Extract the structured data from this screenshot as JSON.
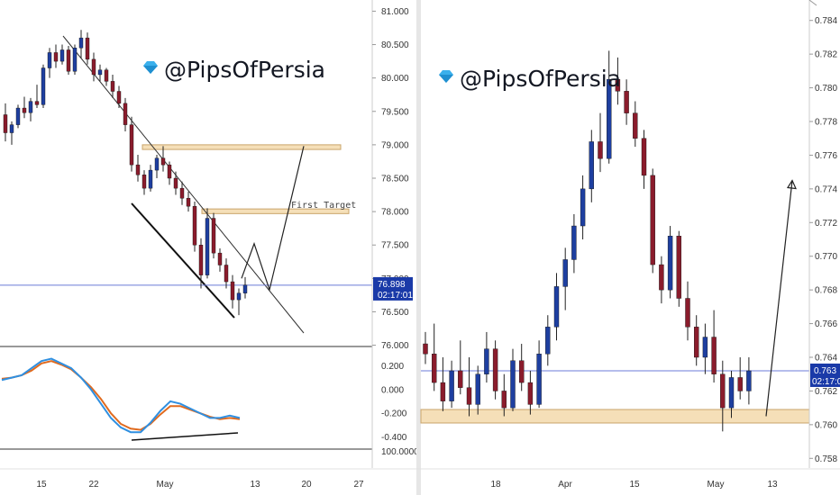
{
  "watermark": "@PipsOfPersia",
  "colors": {
    "up_candle": "#1e3fa0",
    "down_candle": "#8a1c2c",
    "zone_fill": "#f5dfb8",
    "zone_stroke": "#c9a46a",
    "current_line": "#6b7bd8",
    "badge": "#1a3aa8",
    "osc_fast": "#2f8fe0",
    "osc_slow": "#e06a1e"
  },
  "chart_data": [
    {
      "type": "candlestick",
      "title": "",
      "annotation": "First Target",
      "y_axis": {
        "ylim": [
          75.9,
          81.1
        ],
        "ticks": [
          "81.000",
          "80.500",
          "80.000",
          "79.500",
          "79.000",
          "78.500",
          "78.000",
          "77.500",
          "77.000",
          "76.500",
          "76.000"
        ]
      },
      "x_axis": {
        "ticks": [
          "15",
          "22",
          "May",
          "13",
          "20",
          "27"
        ]
      },
      "current_price": {
        "value": 76.898,
        "label": "76.898",
        "countdown": "02:17:01"
      },
      "zones": [
        {
          "low": 78.93,
          "high": 79.0,
          "label": ""
        },
        {
          "low": 77.97,
          "high": 78.04,
          "label": "First Target"
        }
      ],
      "path_points": [
        {
          "x": "May 13",
          "y": 77.0
        },
        {
          "x": "May 14",
          "y": 77.52
        },
        {
          "x": "May 15",
          "y": 76.83
        },
        {
          "x": "May 20",
          "y": 78.98
        }
      ],
      "oscillator": {
        "ylim": [
          -0.48,
          0.34
        ],
        "ticks": [
          "0.200",
          "0.000",
          "-0.200",
          "-0.400"
        ],
        "extra_tick": "100.0000",
        "series": [
          {
            "name": "",
            "values": [
              0.08,
              0.1,
              0.12,
              0.18,
              0.24,
              0.26,
              0.22,
              0.18,
              0.1,
              0.0,
              -0.12,
              -0.24,
              -0.32,
              -0.36,
              -0.36,
              -0.28,
              -0.18,
              -0.1,
              -0.12,
              -0.16,
              -0.2,
              -0.24,
              -0.24,
              -0.22,
              -0.24
            ]
          },
          {
            "name": "",
            "values": [
              0.09,
              0.1,
              0.12,
              0.16,
              0.22,
              0.24,
              0.21,
              0.17,
              0.1,
              0.02,
              -0.08,
              -0.2,
              -0.29,
              -0.33,
              -0.34,
              -0.29,
              -0.21,
              -0.14,
              -0.14,
              -0.17,
              -0.2,
              -0.23,
              -0.25,
              -0.24,
              -0.25
            ]
          }
        ]
      },
      "candles": [
        {
          "o": 79.45,
          "h": 79.62,
          "l": 79.05,
          "c": 79.18
        },
        {
          "o": 79.18,
          "h": 79.35,
          "l": 79.0,
          "c": 79.3
        },
        {
          "o": 79.3,
          "h": 79.6,
          "l": 79.25,
          "c": 79.55
        },
        {
          "o": 79.55,
          "h": 79.72,
          "l": 79.4,
          "c": 79.48
        },
        {
          "o": 79.48,
          "h": 79.7,
          "l": 79.35,
          "c": 79.65
        },
        {
          "o": 79.65,
          "h": 79.9,
          "l": 79.55,
          "c": 79.6
        },
        {
          "o": 79.6,
          "h": 80.2,
          "l": 79.55,
          "c": 80.15
        },
        {
          "o": 80.15,
          "h": 80.45,
          "l": 80.0,
          "c": 80.38
        },
        {
          "o": 80.38,
          "h": 80.5,
          "l": 80.15,
          "c": 80.25
        },
        {
          "o": 80.25,
          "h": 80.5,
          "l": 80.2,
          "c": 80.42
        },
        {
          "o": 80.42,
          "h": 80.48,
          "l": 80.05,
          "c": 80.1
        },
        {
          "o": 80.1,
          "h": 80.5,
          "l": 80.05,
          "c": 80.45
        },
        {
          "o": 80.45,
          "h": 80.72,
          "l": 80.3,
          "c": 80.6
        },
        {
          "o": 80.6,
          "h": 80.68,
          "l": 80.2,
          "c": 80.28
        },
        {
          "o": 80.28,
          "h": 80.38,
          "l": 79.95,
          "c": 80.05
        },
        {
          "o": 80.05,
          "h": 80.2,
          "l": 79.95,
          "c": 80.12
        },
        {
          "o": 80.12,
          "h": 80.15,
          "l": 79.88,
          "c": 79.95
        },
        {
          "o": 79.95,
          "h": 80.05,
          "l": 79.7,
          "c": 79.8
        },
        {
          "o": 79.8,
          "h": 79.88,
          "l": 79.55,
          "c": 79.62
        },
        {
          "o": 79.62,
          "h": 79.7,
          "l": 79.2,
          "c": 79.3
        },
        {
          "o": 79.3,
          "h": 79.42,
          "l": 78.6,
          "c": 78.7
        },
        {
          "o": 78.7,
          "h": 78.85,
          "l": 78.45,
          "c": 78.55
        },
        {
          "o": 78.55,
          "h": 78.62,
          "l": 78.25,
          "c": 78.35
        },
        {
          "o": 78.35,
          "h": 78.7,
          "l": 78.3,
          "c": 78.62
        },
        {
          "o": 78.62,
          "h": 78.85,
          "l": 78.5,
          "c": 78.8
        },
        {
          "o": 78.8,
          "h": 78.98,
          "l": 78.6,
          "c": 78.7
        },
        {
          "o": 78.7,
          "h": 78.75,
          "l": 78.4,
          "c": 78.5
        },
        {
          "o": 78.5,
          "h": 78.6,
          "l": 78.25,
          "c": 78.35
        },
        {
          "o": 78.35,
          "h": 78.45,
          "l": 78.1,
          "c": 78.2
        },
        {
          "o": 78.2,
          "h": 78.3,
          "l": 78.0,
          "c": 78.08
        },
        {
          "o": 78.08,
          "h": 78.15,
          "l": 77.4,
          "c": 77.5
        },
        {
          "o": 77.5,
          "h": 77.6,
          "l": 76.85,
          "c": 77.05
        },
        {
          "o": 77.05,
          "h": 78.05,
          "l": 77.0,
          "c": 77.9
        },
        {
          "o": 77.9,
          "h": 77.98,
          "l": 77.3,
          "c": 77.38
        },
        {
          "o": 77.38,
          "h": 77.45,
          "l": 77.1,
          "c": 77.2
        },
        {
          "o": 77.2,
          "h": 77.3,
          "l": 76.85,
          "c": 76.95
        },
        {
          "o": 76.95,
          "h": 77.05,
          "l": 76.55,
          "c": 76.68
        },
        {
          "o": 76.68,
          "h": 76.85,
          "l": 76.45,
          "c": 76.78
        },
        {
          "o": 76.78,
          "h": 77.02,
          "l": 76.7,
          "c": 76.9
        }
      ]
    },
    {
      "type": "candlestick",
      "title": "",
      "y_axis": {
        "ylim": [
          0.757,
          0.785
        ],
        "ticks": [
          "0.784",
          "0.782",
          "0.780",
          "0.778",
          "0.776",
          "0.774",
          "0.772",
          "0.770",
          "0.768",
          "0.766",
          "0.764",
          "0.762",
          "0.760",
          "0.758"
        ]
      },
      "x_axis": {
        "ticks": [
          "18",
          "Apr",
          "15",
          "May",
          "13"
        ]
      },
      "current_price": {
        "value": 0.7632,
        "label": "0.763",
        "countdown": "02:17:01"
      },
      "zones": [
        {
          "low": 0.7601,
          "high": 0.7609,
          "label": ""
        }
      ],
      "path_points": [
        {
          "x": "May 11",
          "y": 0.7605
        },
        {
          "x": "May 13",
          "y": 0.7745
        }
      ],
      "candles": [
        {
          "o": 0.7648,
          "h": 0.7655,
          "l": 0.7636,
          "c": 0.7642
        },
        {
          "o": 0.7642,
          "h": 0.766,
          "l": 0.762,
          "c": 0.7625
        },
        {
          "o": 0.7625,
          "h": 0.764,
          "l": 0.7608,
          "c": 0.7614
        },
        {
          "o": 0.7614,
          "h": 0.7638,
          "l": 0.761,
          "c": 0.7632
        },
        {
          "o": 0.7632,
          "h": 0.765,
          "l": 0.7618,
          "c": 0.7622
        },
        {
          "o": 0.7622,
          "h": 0.764,
          "l": 0.7605,
          "c": 0.7612
        },
        {
          "o": 0.7612,
          "h": 0.7635,
          "l": 0.7606,
          "c": 0.763
        },
        {
          "o": 0.763,
          "h": 0.7655,
          "l": 0.7625,
          "c": 0.7645
        },
        {
          "o": 0.7645,
          "h": 0.765,
          "l": 0.7615,
          "c": 0.762
        },
        {
          "o": 0.762,
          "h": 0.763,
          "l": 0.7605,
          "c": 0.761
        },
        {
          "o": 0.761,
          "h": 0.7645,
          "l": 0.7608,
          "c": 0.7638
        },
        {
          "o": 0.7638,
          "h": 0.7648,
          "l": 0.762,
          "c": 0.7625
        },
        {
          "o": 0.7625,
          "h": 0.7632,
          "l": 0.7606,
          "c": 0.7612
        },
        {
          "o": 0.7612,
          "h": 0.765,
          "l": 0.761,
          "c": 0.7642
        },
        {
          "o": 0.7642,
          "h": 0.7665,
          "l": 0.7635,
          "c": 0.7658
        },
        {
          "o": 0.7658,
          "h": 0.769,
          "l": 0.765,
          "c": 0.7682
        },
        {
          "o": 0.7682,
          "h": 0.7705,
          "l": 0.7668,
          "c": 0.7698
        },
        {
          "o": 0.7698,
          "h": 0.7725,
          "l": 0.769,
          "c": 0.7718
        },
        {
          "o": 0.7718,
          "h": 0.7748,
          "l": 0.771,
          "c": 0.774
        },
        {
          "o": 0.774,
          "h": 0.7775,
          "l": 0.7732,
          "c": 0.7768
        },
        {
          "o": 0.7768,
          "h": 0.7785,
          "l": 0.775,
          "c": 0.7758
        },
        {
          "o": 0.7758,
          "h": 0.7822,
          "l": 0.7755,
          "c": 0.7805
        },
        {
          "o": 0.7805,
          "h": 0.7818,
          "l": 0.779,
          "c": 0.7798
        },
        {
          "o": 0.7798,
          "h": 0.7805,
          "l": 0.7778,
          "c": 0.7785
        },
        {
          "o": 0.7785,
          "h": 0.7792,
          "l": 0.7765,
          "c": 0.777
        },
        {
          "o": 0.777,
          "h": 0.7775,
          "l": 0.774,
          "c": 0.7748
        },
        {
          "o": 0.7748,
          "h": 0.7752,
          "l": 0.769,
          "c": 0.7695
        },
        {
          "o": 0.7695,
          "h": 0.77,
          "l": 0.7672,
          "c": 0.768
        },
        {
          "o": 0.768,
          "h": 0.7718,
          "l": 0.7675,
          "c": 0.7712
        },
        {
          "o": 0.7712,
          "h": 0.7715,
          "l": 0.767,
          "c": 0.7675
        },
        {
          "o": 0.7675,
          "h": 0.7685,
          "l": 0.765,
          "c": 0.7658
        },
        {
          "o": 0.7658,
          "h": 0.7665,
          "l": 0.7635,
          "c": 0.764
        },
        {
          "o": 0.764,
          "h": 0.766,
          "l": 0.763,
          "c": 0.7652
        },
        {
          "o": 0.7652,
          "h": 0.7668,
          "l": 0.7625,
          "c": 0.763
        },
        {
          "o": 0.763,
          "h": 0.7638,
          "l": 0.7596,
          "c": 0.761
        },
        {
          "o": 0.761,
          "h": 0.7632,
          "l": 0.7604,
          "c": 0.7628
        },
        {
          "o": 0.7628,
          "h": 0.764,
          "l": 0.7615,
          "c": 0.762
        },
        {
          "o": 0.762,
          "h": 0.764,
          "l": 0.7612,
          "c": 0.7632
        }
      ]
    }
  ]
}
